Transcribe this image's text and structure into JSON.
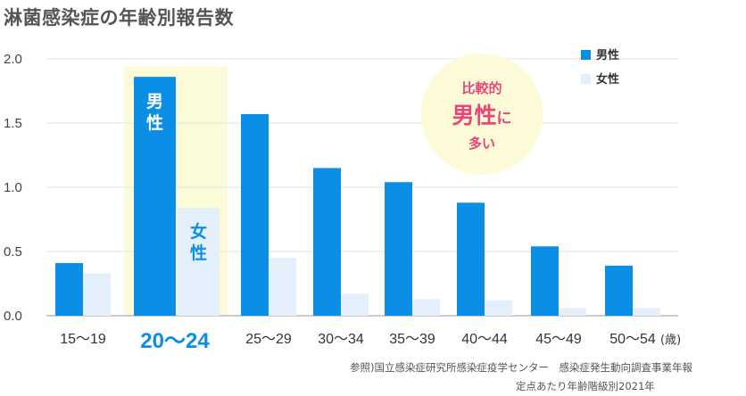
{
  "title": "淋菌感染症の年齢別報告数",
  "chart_data": {
    "type": "bar",
    "categories": [
      "15〜19",
      "20〜24",
      "25〜29",
      "30〜34",
      "35〜39",
      "40〜44",
      "45〜49",
      "50〜54"
    ],
    "highlight_category": "20〜24",
    "series": [
      {
        "name": "男性",
        "color": "#0b8fe6",
        "values": [
          0.41,
          1.86,
          1.57,
          1.15,
          1.04,
          0.88,
          0.54,
          0.39
        ]
      },
      {
        "name": "女性",
        "color": "#e4effc",
        "values": [
          0.33,
          0.84,
          0.45,
          0.17,
          0.13,
          0.12,
          0.06,
          0.06
        ]
      }
    ],
    "ylim": [
      0,
      2.0
    ],
    "yticks": [
      "0.0",
      "0.5",
      "1.0",
      "1.5",
      "2.0"
    ],
    "x_unit": "(歳)",
    "grid": true,
    "legend_position": "top-right",
    "bar_labels": {
      "male": "男性",
      "female": "女性"
    }
  },
  "callout": {
    "line1": "比較的",
    "line2_big": "男性",
    "line2_small": "に",
    "line3": "多い"
  },
  "source": {
    "line1": "参照)国立感染症研究所感染症疫学センター　感染症発生動向調査事業年報",
    "line2": "定点あたり年齢階級別2021年"
  }
}
